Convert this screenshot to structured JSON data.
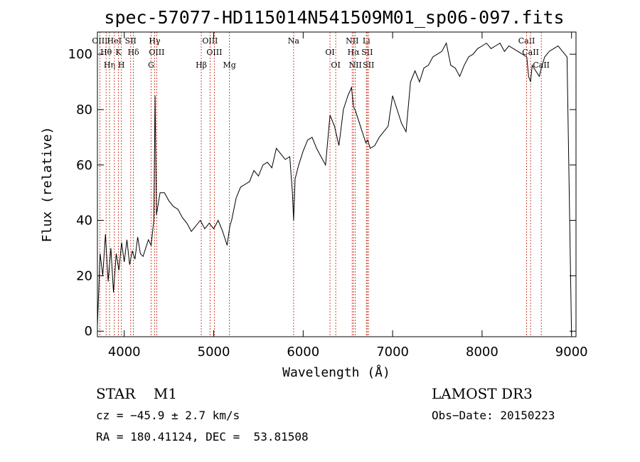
{
  "chart_data": {
    "type": "line",
    "title": "spec-57077-HD115014N541509M01_sp06-097.fits",
    "xlabel": "Wavelength (Å)",
    "ylabel": "Flux (relative)",
    "xlim": [
      3700,
      9050
    ],
    "ylim": [
      -2,
      108
    ],
    "xticks": [
      4000,
      5000,
      6000,
      7000,
      8000,
      9000
    ],
    "yticks": [
      0,
      20,
      40,
      60,
      80,
      100
    ],
    "grid": false,
    "series": [
      {
        "name": "spectrum",
        "x": [
          3700,
          3730,
          3760,
          3790,
          3820,
          3850,
          3880,
          3910,
          3940,
          3970,
          4000,
          4030,
          4060,
          4090,
          4120,
          4150,
          4180,
          4210,
          4240,
          4270,
          4300,
          4330,
          4345,
          4360,
          4380,
          4400,
          4450,
          4500,
          4550,
          4600,
          4650,
          4700,
          4750,
          4800,
          4850,
          4900,
          4950,
          5000,
          5050,
          5100,
          5150,
          5180,
          5200,
          5250,
          5300,
          5350,
          5400,
          5450,
          5500,
          5550,
          5600,
          5650,
          5700,
          5750,
          5800,
          5850,
          5880,
          5893,
          5910,
          5950,
          6000,
          6050,
          6100,
          6150,
          6200,
          6250,
          6300,
          6350,
          6400,
          6450,
          6500,
          6540,
          6563,
          6580,
          6600,
          6650,
          6700,
          6720,
          6750,
          6800,
          6850,
          6900,
          6950,
          7000,
          7050,
          7100,
          7150,
          7200,
          7250,
          7300,
          7350,
          7400,
          7450,
          7500,
          7550,
          7600,
          7650,
          7700,
          7750,
          7800,
          7850,
          7900,
          7950,
          8000,
          8050,
          8100,
          8150,
          8200,
          8250,
          8300,
          8350,
          8400,
          8450,
          8500,
          8520,
          8542,
          8560,
          8600,
          8640,
          8662,
          8700,
          8750,
          8800,
          8850,
          8900,
          8950,
          9000
        ],
        "y": [
          2,
          28,
          20,
          35,
          18,
          30,
          14,
          28,
          22,
          32,
          25,
          33,
          24,
          29,
          26,
          34,
          28,
          27,
          30,
          33,
          31,
          40,
          85,
          42,
          46,
          50,
          50,
          47,
          45,
          44,
          41,
          39,
          36,
          38,
          40,
          37,
          39,
          37,
          40,
          36,
          31,
          38,
          40,
          48,
          52,
          53,
          54,
          58,
          56,
          60,
          61,
          59,
          66,
          64,
          62,
          63,
          50,
          40,
          55,
          60,
          65,
          69,
          70,
          66,
          63,
          60,
          78,
          74,
          67,
          80,
          85,
          88,
          81,
          80,
          78,
          73,
          68,
          69,
          66,
          67,
          70,
          72,
          74,
          85,
          80,
          75,
          72,
          90,
          94,
          90,
          95,
          96,
          99,
          100,
          101,
          104,
          96,
          95,
          92,
          96,
          99,
          100,
          102,
          103,
          104,
          102,
          103,
          104,
          101,
          103,
          102,
          101,
          100,
          99,
          92,
          90,
          96,
          94,
          92,
          95,
          99,
          101,
          102,
          103,
          101,
          99,
          -1
        ]
      }
    ],
    "lines": [
      {
        "name": "OIII",
        "x": 3727
      },
      {
        "name": "Hθ",
        "x": 3797
      },
      {
        "name": "Hη",
        "x": 3835
      },
      {
        "name": "HeI",
        "x": 3889
      },
      {
        "name": "K",
        "x": 3934
      },
      {
        "name": "H",
        "x": 3968
      },
      {
        "name": "SII",
        "x": 4072
      },
      {
        "name": "Hδ",
        "x": 4102
      },
      {
        "name": "G",
        "x": 4300
      },
      {
        "name": "Hγ",
        "x": 4340
      },
      {
        "name": "OIII",
        "x": 4363
      },
      {
        "name": "Hβ",
        "x": 4861
      },
      {
        "name": "OIII",
        "x": 4959
      },
      {
        "name": "OIII",
        "x": 5007
      },
      {
        "name": "Mg",
        "x": 5176
      },
      {
        "name": "Na",
        "x": 5893
      },
      {
        "name": "OI",
        "x": 6300
      },
      {
        "name": "OI",
        "x": 6364
      },
      {
        "name": "NII",
        "x": 6548
      },
      {
        "name": "Hα",
        "x": 6563
      },
      {
        "name": "NII",
        "x": 6583
      },
      {
        "name": "Li",
        "x": 6707
      },
      {
        "name": "SII",
        "x": 6716
      },
      {
        "name": "SII",
        "x": 6731
      },
      {
        "name": "CaII",
        "x": 8498
      },
      {
        "name": "CaII",
        "x": 8542
      },
      {
        "name": "CaII",
        "x": 8662
      }
    ]
  },
  "info": {
    "obj_type": "STAR",
    "subclass": "M1",
    "survey": "LAMOST DR3",
    "cz_text": "cz = −45.9 ± 2.7 km/s",
    "obs_date": "Obs−Date: 20150223",
    "coords": "RA = 180.41124, DEC =  53.81508"
  }
}
